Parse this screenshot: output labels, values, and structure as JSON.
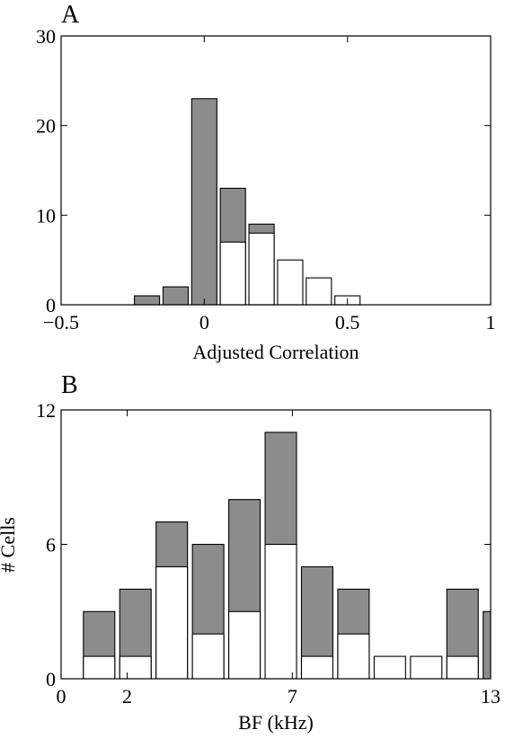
{
  "chart_data": [
    {
      "type": "bar",
      "stacked": "overlay",
      "panel_label": "A",
      "xlabel": "Adjusted Correlation",
      "ylabel": "",
      "xlim": [
        -0.5,
        1
      ],
      "ylim": [
        0,
        30
      ],
      "xticks": [
        -0.5,
        0,
        0.5,
        1
      ],
      "xtick_labels": [
        "−0.5",
        "0",
        "0.5",
        "1"
      ],
      "yticks": [
        0,
        10,
        20,
        30
      ],
      "ytick_labels": [
        "0",
        "10",
        "20",
        "30"
      ],
      "bin_width": 0.1,
      "bin_centers": [
        -0.2,
        -0.1,
        0.0,
        0.1,
        0.2,
        0.3,
        0.4,
        0.5
      ],
      "series": [
        {
          "color": "#8c8c8c",
          "values": [
            1,
            2,
            23,
            13,
            9,
            0,
            0,
            0
          ]
        },
        {
          "color": "#ffffff",
          "values": [
            0,
            0,
            0,
            7,
            8,
            5,
            3,
            1
          ]
        }
      ],
      "grid": false
    },
    {
      "type": "bar",
      "stacked": "overlay",
      "panel_label": "B",
      "xlabel": "BF (kHz)",
      "ylabel": "# Cells",
      "xlim": [
        0,
        13
      ],
      "ylim": [
        0,
        12
      ],
      "xticks": [
        0,
        2,
        7,
        13
      ],
      "xtick_labels": [
        "0",
        "2",
        "7",
        "13"
      ],
      "yticks": [
        0,
        6,
        12
      ],
      "ytick_labels": [
        "0",
        "6",
        "12"
      ],
      "bin_width": 1.08,
      "bin_centers": [
        1.15,
        2.25,
        3.35,
        4.45,
        5.55,
        6.65,
        7.75,
        8.85,
        9.95,
        11.05,
        12.15,
        13.25
      ],
      "series": [
        {
          "color": "#8c8c8c",
          "values": [
            3,
            4,
            7,
            6,
            8,
            11,
            5,
            4,
            0,
            0,
            4,
            3
          ]
        },
        {
          "color": "#ffffff",
          "values": [
            1,
            1,
            5,
            2,
            3,
            6,
            1,
            2,
            1,
            1,
            1,
            0
          ]
        }
      ],
      "grid": false
    }
  ]
}
